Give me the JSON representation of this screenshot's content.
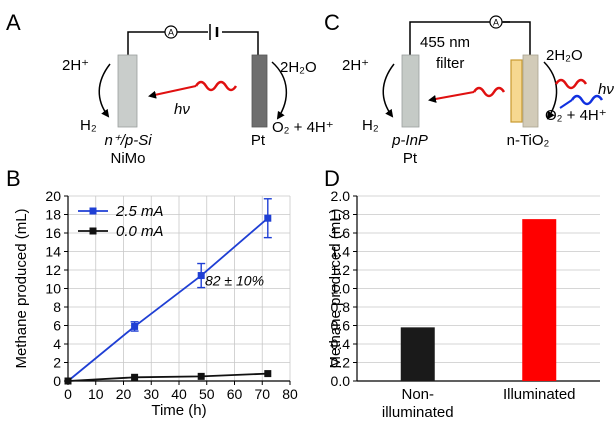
{
  "panels": {
    "A": {
      "letter": "A",
      "left_reaction": "2H⁺",
      "left_product": "H₂",
      "hv": "hν",
      "electrode_left": [
        "n⁺/p-Si",
        "NiMo"
      ],
      "electrode_right": "Pt",
      "right_reaction": "2H₂O",
      "right_product": "O₂ + 4H⁺",
      "ammeter": "A"
    },
    "C": {
      "letter": "C",
      "left_reaction": "2H⁺",
      "left_product": "H₂",
      "filter_label": [
        "455 nm",
        "filter"
      ],
      "hv": "hν",
      "electrode_left": [
        "p-InP",
        "Pt"
      ],
      "electrode_right": "n-TiO₂",
      "right_reaction": "2H₂O",
      "right_product": "O₂ + 4H⁺",
      "ammeter": "A"
    },
    "B": {
      "letter": "B"
    },
    "D": {
      "letter": "D"
    }
  },
  "chart_data": [
    {
      "panel": "B",
      "type": "line",
      "xlabel": "Time (h)",
      "ylabel": "Methane produced (mL)",
      "xlim": [
        0,
        80
      ],
      "ylim": [
        0,
        20
      ],
      "xticks": [
        0,
        10,
        20,
        30,
        40,
        50,
        60,
        70,
        80
      ],
      "yticks": [
        0,
        2,
        4,
        6,
        8,
        10,
        12,
        14,
        16,
        18,
        20
      ],
      "grid": true,
      "legend_position": "top-left",
      "annotation": "82 ± 10%",
      "series": [
        {
          "name": "2.5 mA",
          "color": "#1f3fd4",
          "x": [
            0,
            24,
            48,
            72
          ],
          "y": [
            0,
            5.9,
            11.4,
            17.6
          ],
          "err": [
            0,
            0.5,
            1.3,
            2.1
          ]
        },
        {
          "name": "0.0 mA",
          "color": "#111111",
          "x": [
            0,
            24,
            48,
            72
          ],
          "y": [
            0,
            0.4,
            0.5,
            0.8
          ],
          "err": [
            0,
            0,
            0,
            0
          ]
        }
      ]
    },
    {
      "panel": "D",
      "type": "bar",
      "ylabel": "Methane produced (mL)",
      "ylim": [
        0,
        2.0
      ],
      "yticks": [
        0.0,
        0.2,
        0.4,
        0.6,
        0.8,
        1.0,
        1.2,
        1.4,
        1.6,
        1.8,
        2.0
      ],
      "grid": true,
      "categories": [
        [
          "Non-",
          "illuminated"
        ],
        [
          "Illuminated"
        ]
      ],
      "values": [
        0.58,
        1.75
      ],
      "colors": [
        "#1a1a1a",
        "#ff0000"
      ]
    }
  ]
}
